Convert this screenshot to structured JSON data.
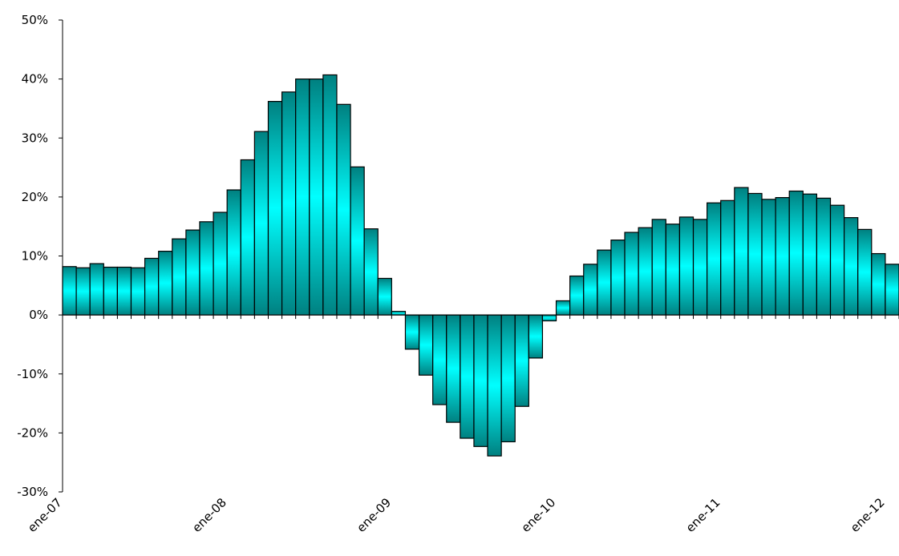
{
  "chart_data": {
    "type": "bar",
    "title": "",
    "xlabel": "",
    "ylabel": "",
    "ylim": [
      -30,
      50
    ],
    "y_ticks": [
      {
        "value": -30,
        "label": "-30%"
      },
      {
        "value": -20,
        "label": "-20%"
      },
      {
        "value": -10,
        "label": "-10%"
      },
      {
        "value": 0,
        "label": "0%"
      },
      {
        "value": 10,
        "label": "10%"
      },
      {
        "value": 20,
        "label": "20%"
      },
      {
        "value": 30,
        "label": "30%"
      },
      {
        "value": 40,
        "label": "40%"
      },
      {
        "value": 50,
        "label": "50%"
      }
    ],
    "x_tick_labels": [
      {
        "index": 0,
        "label": "ene-07"
      },
      {
        "index": 12,
        "label": "ene-08"
      },
      {
        "index": 24,
        "label": "ene-09"
      },
      {
        "index": 36,
        "label": "ene-10"
      },
      {
        "index": 48,
        "label": "ene-11"
      },
      {
        "index": 60,
        "label": "ene-12"
      }
    ],
    "grid": false,
    "legend": "none",
    "colors": {
      "bar_edge": "#008080",
      "bar_center": "#00ffff",
      "bar_stroke": "#000000",
      "axis": "#000000"
    },
    "values": [
      8.2,
      8.0,
      8.7,
      8.1,
      8.1,
      8.0,
      9.6,
      10.8,
      12.9,
      14.4,
      15.8,
      17.4,
      21.2,
      26.3,
      31.1,
      36.2,
      37.8,
      40.0,
      40.0,
      40.7,
      35.7,
      25.1,
      14.6,
      6.2,
      0.6,
      -5.8,
      -10.2,
      -15.2,
      -18.2,
      -20.9,
      -22.3,
      -23.9,
      -21.5,
      -15.5,
      -7.3,
      -1.0,
      2.4,
      6.6,
      8.6,
      11.0,
      12.7,
      14.0,
      14.8,
      16.2,
      15.4,
      16.6,
      16.2,
      19.0,
      19.4,
      21.6,
      20.6,
      19.6,
      19.9,
      21.0,
      20.5,
      19.8,
      18.6,
      16.5,
      14.5,
      10.4,
      8.6
    ]
  }
}
